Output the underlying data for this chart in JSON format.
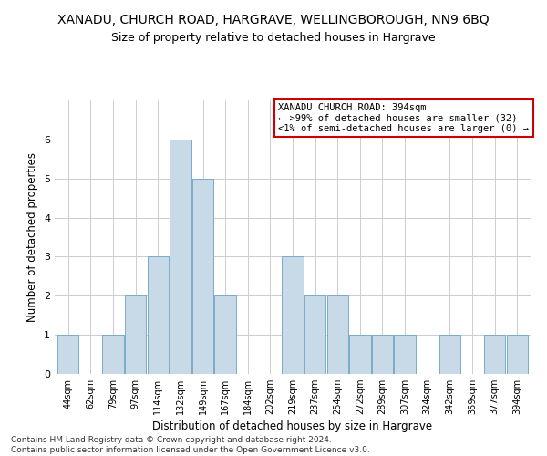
{
  "title": "XANADU, CHURCH ROAD, HARGRAVE, WELLINGBOROUGH, NN9 6BQ",
  "subtitle": "Size of property relative to detached houses in Hargrave",
  "xlabel": "Distribution of detached houses by size in Hargrave",
  "ylabel": "Number of detached properties",
  "categories": [
    "44sqm",
    "62sqm",
    "79sqm",
    "97sqm",
    "114sqm",
    "132sqm",
    "149sqm",
    "167sqm",
    "184sqm",
    "202sqm",
    "219sqm",
    "237sqm",
    "254sqm",
    "272sqm",
    "289sqm",
    "307sqm",
    "324sqm",
    "342sqm",
    "359sqm",
    "377sqm",
    "394sqm"
  ],
  "values": [
    1,
    0,
    1,
    2,
    3,
    6,
    5,
    2,
    0,
    0,
    3,
    2,
    2,
    1,
    1,
    1,
    0,
    1,
    0,
    1,
    1
  ],
  "bar_color": "#c8d9e8",
  "bar_edge_color": "#7aaac8",
  "annotation_text": "XANADU CHURCH ROAD: 394sqm\n← >99% of detached houses are smaller (32)\n<1% of semi-detached houses are larger (0) →",
  "annotation_box_color": "#ffffff",
  "annotation_box_edge_color": "#cc0000",
  "ylim": [
    0,
    7
  ],
  "yticks": [
    0,
    1,
    2,
    3,
    4,
    5,
    6,
    7
  ],
  "background_color": "#ffffff",
  "grid_color": "#cccccc",
  "footnote": "Contains HM Land Registry data © Crown copyright and database right 2024.\nContains public sector information licensed under the Open Government Licence v3.0.",
  "title_fontsize": 10,
  "subtitle_fontsize": 9,
  "xlabel_fontsize": 8.5,
  "ylabel_fontsize": 8.5,
  "tick_fontsize": 7,
  "annot_fontsize": 7.5,
  "footnote_fontsize": 6.5
}
